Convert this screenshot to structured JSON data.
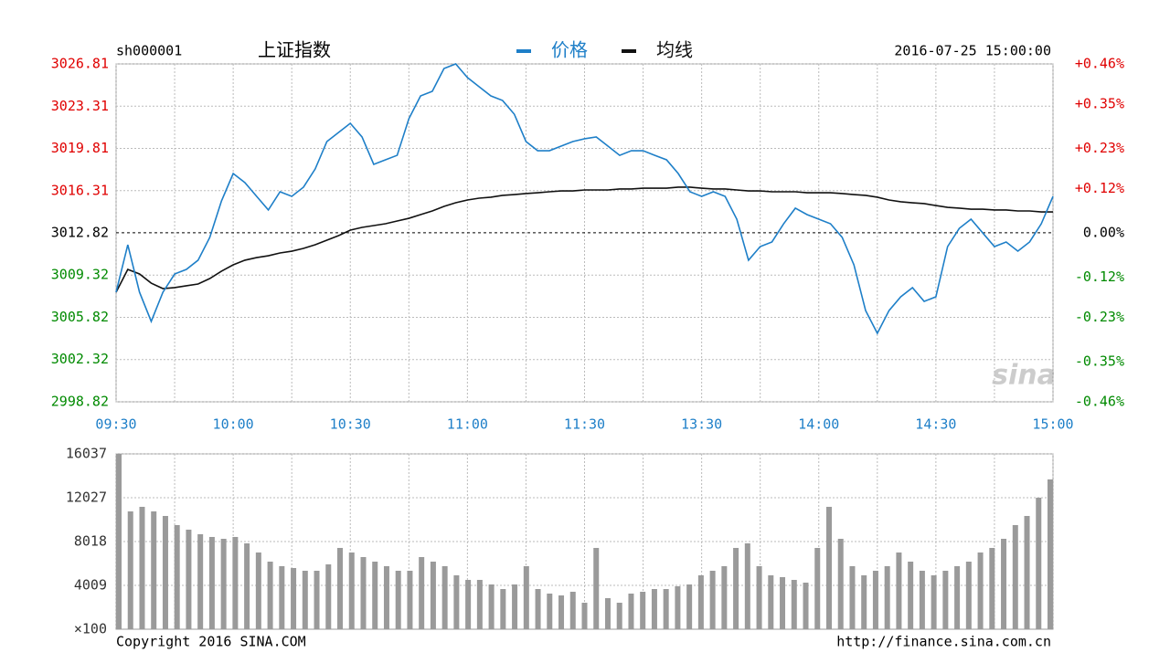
{
  "chart_data": [
    {
      "type": "line",
      "code": "sh000001",
      "title": "上证指数",
      "datetime": "2016-07-25 15:00:00",
      "categories": [
        "09:30",
        null,
        null,
        null,
        null,
        null,
        null,
        null,
        null,
        null,
        "10:00",
        null,
        null,
        null,
        null,
        null,
        null,
        null,
        null,
        null,
        "10:30",
        null,
        null,
        null,
        null,
        null,
        null,
        null,
        null,
        null,
        "11:00",
        null,
        null,
        null,
        null,
        null,
        null,
        null,
        null,
        null,
        "11:30",
        null,
        null,
        null,
        null,
        null,
        null,
        null,
        null,
        null,
        "13:30",
        null,
        null,
        null,
        null,
        null,
        null,
        null,
        null,
        null,
        "14:00",
        null,
        null,
        null,
        null,
        null,
        null,
        null,
        null,
        null,
        "14:30",
        null,
        null,
        null,
        null,
        null,
        null,
        null,
        null,
        null,
        "15:00"
      ],
      "series": [
        {
          "name": "价格",
          "color": "#1e7fc8",
          "values": [
            3007.9,
            3011.83,
            3007.9,
            3005.48,
            3007.9,
            3009.41,
            3009.79,
            3010.55,
            3012.44,
            3015.46,
            3017.73,
            3016.98,
            3015.84,
            3014.71,
            3016.22,
            3015.84,
            3016.6,
            3018.11,
            3020.38,
            3021.14,
            3021.89,
            3020.76,
            3018.49,
            3018.87,
            3019.24,
            3022.27,
            3024.16,
            3024.54,
            3026.43,
            3026.81,
            3025.68,
            3024.92,
            3024.16,
            3023.78,
            3022.65,
            3020.38,
            3019.62,
            3019.62,
            3020.0,
            3020.38,
            3020.61,
            3020.76,
            3020.0,
            3019.24,
            3019.62,
            3019.62,
            3019.24,
            3018.87,
            3017.73,
            3016.22,
            3015.84,
            3016.22,
            3015.84,
            3013.95,
            3010.55,
            3011.68,
            3012.06,
            3013.57,
            3014.86,
            3014.33,
            3013.95,
            3013.57,
            3012.44,
            3010.17,
            3006.38,
            3004.49,
            3006.38,
            3007.52,
            3008.28,
            3007.14,
            3007.52,
            3011.68,
            3013.19,
            3013.95,
            3012.81,
            3011.68,
            3012.06,
            3011.3,
            3012.06,
            3013.57,
            3015.84
          ]
        },
        {
          "name": "均线",
          "color": "#111111",
          "values": [
            3007.9,
            3009.79,
            3009.41,
            3008.65,
            3008.2,
            3008.28,
            3008.43,
            3008.58,
            3009.03,
            3009.64,
            3010.17,
            3010.55,
            3010.77,
            3010.92,
            3011.15,
            3011.3,
            3011.53,
            3011.83,
            3012.21,
            3012.59,
            3013.04,
            3013.27,
            3013.42,
            3013.57,
            3013.8,
            3014.02,
            3014.33,
            3014.63,
            3015.01,
            3015.31,
            3015.54,
            3015.69,
            3015.77,
            3015.92,
            3015.99,
            3016.07,
            3016.14,
            3016.22,
            3016.29,
            3016.29,
            3016.37,
            3016.37,
            3016.37,
            3016.45,
            3016.45,
            3016.52,
            3016.52,
            3016.52,
            3016.6,
            3016.6,
            3016.52,
            3016.45,
            3016.45,
            3016.37,
            3016.29,
            3016.29,
            3016.22,
            3016.22,
            3016.22,
            3016.14,
            3016.14,
            3016.14,
            3016.07,
            3015.99,
            3015.92,
            3015.77,
            3015.54,
            3015.39,
            3015.31,
            3015.24,
            3015.08,
            3014.93,
            3014.86,
            3014.78,
            3014.78,
            3014.71,
            3014.71,
            3014.63,
            3014.63,
            3014.55,
            3014.55
          ]
        }
      ],
      "ylim": [
        2998.82,
        3026.81
      ],
      "yticks": [
        3026.81,
        3023.31,
        3019.81,
        3016.31,
        3012.82,
        3009.32,
        3005.82,
        3002.32,
        2998.82
      ],
      "y2lim": [
        -0.46,
        0.46
      ],
      "y2ticks": [
        {
          "value": 0.46,
          "label": "+0.46%"
        },
        {
          "value": 0.35,
          "label": "+0.35%"
        },
        {
          "value": 0.23,
          "label": "+0.23%"
        },
        {
          "value": 0.12,
          "label": "+0.12%"
        },
        {
          "value": 0,
          "label": "0.00%"
        },
        {
          "value": -0.12,
          "label": "-0.12%"
        },
        {
          "value": -0.23,
          "label": "-0.23%"
        },
        {
          "value": -0.35,
          "label": "-0.35%"
        },
        {
          "value": -0.46,
          "label": "-0.46%"
        }
      ],
      "up_color": "#e00000",
      "down_color": "#008a00",
      "grid": true
    },
    {
      "type": "bar",
      "color": "#9a9a9a",
      "unit_label": "×100",
      "values": [
        16037,
        10775,
        11193,
        10775,
        10358,
        9523,
        9105,
        8687,
        8437,
        8270,
        8437,
        7852,
        7017,
        6181,
        5764,
        5597,
        5346,
        5346,
        5931,
        7434,
        7017,
        6599,
        6181,
        5764,
        5346,
        5346,
        6599,
        6181,
        5764,
        4928,
        4511,
        4511,
        4093,
        3675,
        4093,
        5764,
        3675,
        3258,
        3091,
        3425,
        2422,
        7434,
        2840,
        2422,
        3258,
        3425,
        3675,
        3675,
        3926,
        4093,
        4928,
        5346,
        5764,
        7434,
        7852,
        5764,
        4928,
        4761,
        4511,
        4260,
        7434,
        11193,
        8270,
        5764,
        4928,
        5346,
        5764,
        7017,
        6181,
        5346,
        4928,
        5346,
        5764,
        6181,
        7017,
        7434,
        8270,
        9523,
        10358,
        12028,
        13699
      ],
      "ylim": [
        0,
        16037
      ],
      "yticks": [
        16037,
        12027,
        8018,
        4009
      ],
      "grid": true
    }
  ],
  "footer": {
    "copyright": "Copyright 2016 SINA.COM",
    "url": "http://finance.sina.com.cn"
  },
  "watermark": "sina"
}
